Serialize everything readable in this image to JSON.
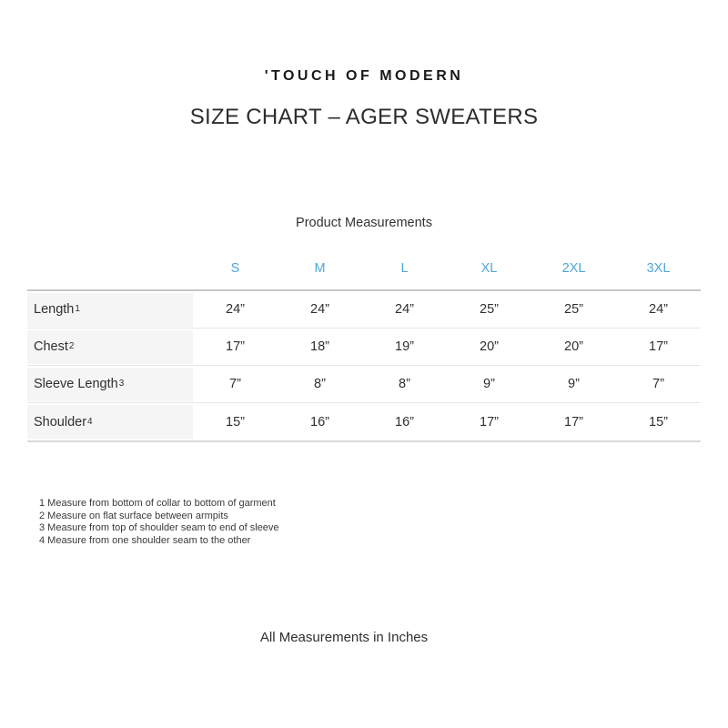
{
  "colors": {
    "accent_blue": "#4FA6D9"
  },
  "header": {
    "brand": "'TOUCH OF MODERN",
    "title": "SIZE CHART – AGER SWEATERS"
  },
  "table": {
    "caption": "Product Measurements",
    "sizes": [
      "S",
      "M",
      "L",
      "XL",
      "2XL",
      "3XL"
    ],
    "rows": [
      {
        "label": "Length",
        "note_ref": "1",
        "values": [
          "24”",
          "24”",
          "24”",
          "25”",
          "25”",
          "24”"
        ]
      },
      {
        "label": "Chest",
        "note_ref": "2",
        "values": [
          "17”",
          "18”",
          "19”",
          "20”",
          "20”",
          "17”"
        ]
      },
      {
        "label": "Sleeve Length",
        "note_ref": "3",
        "values": [
          "7”",
          "8”",
          "8”",
          "9”",
          "9”",
          "7”"
        ]
      },
      {
        "label": "Shoulder",
        "note_ref": "4",
        "values": [
          "15”",
          "16”",
          "16”",
          "17”",
          "17”",
          "15”"
        ]
      }
    ]
  },
  "footnotes": [
    "1 Measure from bottom of collar to bottom of garment",
    "2 Measure on flat surface between armpits",
    "3 Measure from top of shoulder seam to end of sleeve",
    "4 Measure from one shoulder seam to the other"
  ],
  "footer": {
    "note": "All Measurements in Inches"
  }
}
